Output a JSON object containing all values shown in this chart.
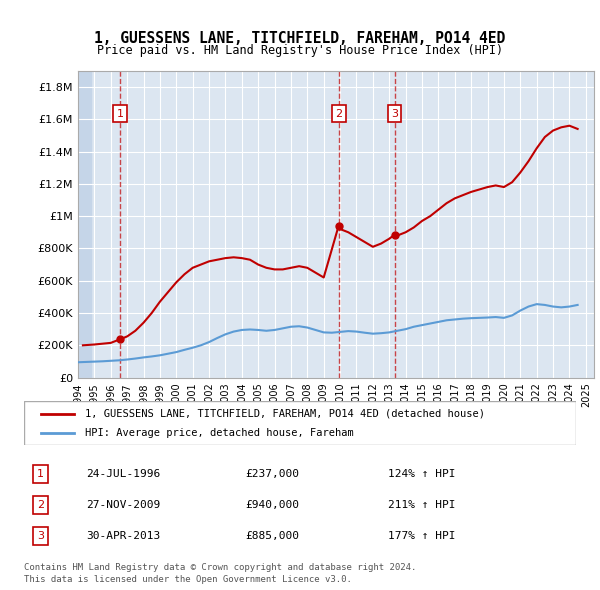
{
  "title": "1, GUESSENS LANE, TITCHFIELD, FAREHAM, PO14 4ED",
  "subtitle": "Price paid vs. HM Land Registry's House Price Index (HPI)",
  "ylabel_ticks": [
    "£0",
    "£200K",
    "£400K",
    "£600K",
    "£800K",
    "£1M",
    "£1.2M",
    "£1.4M",
    "£1.6M",
    "£1.8M"
  ],
  "ylabel_values": [
    0,
    200000,
    400000,
    600000,
    800000,
    1000000,
    1200000,
    1400000,
    1600000,
    1800000
  ],
  "ylim": [
    0,
    1900000
  ],
  "xlim_start": 1994.0,
  "xlim_end": 2025.5,
  "hpi_color": "#5b9bd5",
  "price_color": "#c00000",
  "background_plot": "#dce6f1",
  "background_hatch": "#c5d5e8",
  "legend_line1": "1, GUESSENS LANE, TITCHFIELD, FAREHAM, PO14 4ED (detached house)",
  "legend_line2": "HPI: Average price, detached house, Fareham",
  "transactions": [
    {
      "num": 1,
      "date": "24-JUL-1996",
      "year": 1996.56,
      "price": 237000,
      "hpi_pct": "124%"
    },
    {
      "num": 2,
      "date": "27-NOV-2009",
      "year": 2009.91,
      "price": 940000,
      "hpi_pct": "211%"
    },
    {
      "num": 3,
      "date": "30-APR-2013",
      "year": 2013.33,
      "price": 885000,
      "hpi_pct": "177%"
    }
  ],
  "footer1": "Contains HM Land Registry data © Crown copyright and database right 2024.",
  "footer2": "This data is licensed under the Open Government Licence v3.0.",
  "hpi_data_x": [
    1994.0,
    1994.5,
    1995.0,
    1995.5,
    1996.0,
    1996.5,
    1997.0,
    1997.5,
    1998.0,
    1998.5,
    1999.0,
    1999.5,
    2000.0,
    2000.5,
    2001.0,
    2001.5,
    2002.0,
    2002.5,
    2003.0,
    2003.5,
    2004.0,
    2004.5,
    2005.0,
    2005.5,
    2006.0,
    2006.5,
    2007.0,
    2007.5,
    2008.0,
    2008.5,
    2009.0,
    2009.5,
    2010.0,
    2010.5,
    2011.0,
    2011.5,
    2012.0,
    2012.5,
    2013.0,
    2013.5,
    2014.0,
    2014.5,
    2015.0,
    2015.5,
    2016.0,
    2016.5,
    2017.0,
    2017.5,
    2018.0,
    2018.5,
    2019.0,
    2019.5,
    2020.0,
    2020.5,
    2021.0,
    2021.5,
    2022.0,
    2022.5,
    2023.0,
    2023.5,
    2024.0,
    2024.5
  ],
  "hpi_data_y": [
    95000,
    97000,
    99000,
    101000,
    104000,
    107000,
    112000,
    118000,
    125000,
    131000,
    138000,
    148000,
    158000,
    172000,
    185000,
    200000,
    220000,
    245000,
    268000,
    285000,
    295000,
    298000,
    295000,
    290000,
    295000,
    305000,
    315000,
    318000,
    310000,
    295000,
    280000,
    278000,
    283000,
    288000,
    285000,
    278000,
    272000,
    275000,
    280000,
    290000,
    300000,
    315000,
    325000,
    335000,
    345000,
    355000,
    360000,
    365000,
    368000,
    370000,
    372000,
    375000,
    370000,
    385000,
    415000,
    440000,
    455000,
    450000,
    440000,
    435000,
    440000,
    450000
  ],
  "price_data_x": [
    1994.3,
    1995.0,
    1996.0,
    1996.56,
    1997.0,
    1997.5,
    1998.0,
    1998.5,
    1999.0,
    1999.5,
    2000.0,
    2000.5,
    2001.0,
    2001.5,
    2002.0,
    2002.5,
    2003.0,
    2003.5,
    2004.0,
    2004.5,
    2005.0,
    2005.5,
    2006.0,
    2006.5,
    2007.0,
    2007.5,
    2008.0,
    2008.5,
    2009.0,
    2009.91,
    2010.0,
    2010.5,
    2011.0,
    2011.5,
    2012.0,
    2012.5,
    2013.0,
    2013.33,
    2013.5,
    2014.0,
    2014.5,
    2015.0,
    2015.5,
    2016.0,
    2016.5,
    2017.0,
    2017.5,
    2018.0,
    2018.5,
    2019.0,
    2019.5,
    2020.0,
    2020.5,
    2021.0,
    2021.5,
    2022.0,
    2022.5,
    2023.0,
    2023.5,
    2024.0,
    2024.5
  ],
  "price_data_y": [
    200000,
    205000,
    215000,
    237000,
    255000,
    290000,
    340000,
    400000,
    470000,
    530000,
    590000,
    640000,
    680000,
    700000,
    720000,
    730000,
    740000,
    745000,
    740000,
    730000,
    700000,
    680000,
    670000,
    670000,
    680000,
    690000,
    680000,
    650000,
    620000,
    940000,
    920000,
    900000,
    870000,
    840000,
    810000,
    830000,
    860000,
    885000,
    880000,
    900000,
    930000,
    970000,
    1000000,
    1040000,
    1080000,
    1110000,
    1130000,
    1150000,
    1165000,
    1180000,
    1190000,
    1180000,
    1210000,
    1270000,
    1340000,
    1420000,
    1490000,
    1530000,
    1550000,
    1560000,
    1540000
  ]
}
